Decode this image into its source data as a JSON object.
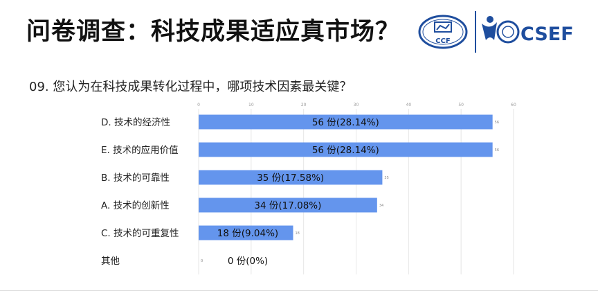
{
  "slide": {
    "title": "问卷调查：科技成果适应真市场？",
    "question": "09. 您认为在科技成果转化过程中，哪项技术因素最关键？"
  },
  "logos": {
    "ccf_text": "CCF",
    "csef_text": "CSEF",
    "brand_color": "#1f4e9e"
  },
  "chart_data": {
    "type": "bar",
    "orientation": "horizontal",
    "categories": [
      "D. 技术的经济性",
      "E. 技术的应用价值",
      "B. 技术的可靠性",
      "A. 技术的创新性",
      "C. 技术的可重复性",
      "其他"
    ],
    "values": [
      56,
      56,
      35,
      34,
      18,
      0
    ],
    "data_labels": [
      "56 份(28.14%)",
      "56 份(28.14%)",
      "35 份(17.58%)",
      "34 份(17.08%)",
      "18 份(9.04%)",
      "0 份(0%)"
    ],
    "x_ticks": [
      0,
      10,
      20,
      30,
      40,
      50,
      60
    ],
    "xlim": [
      0,
      60
    ],
    "bar_color": "#6495ed",
    "grid": true
  }
}
